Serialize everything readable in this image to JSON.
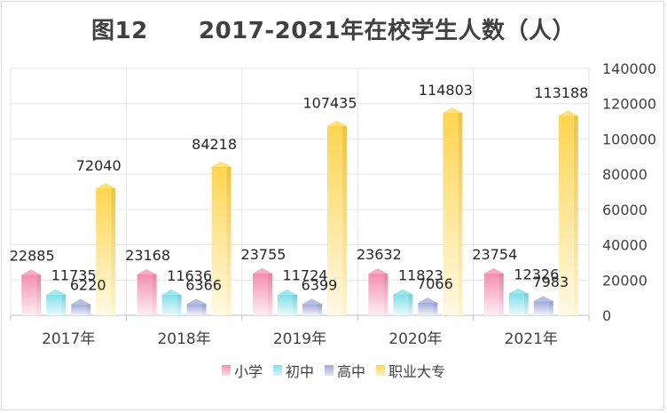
{
  "chart_data": {
    "type": "bar",
    "title": "图12      2017-2021年在校学生人数（人）",
    "categories": [
      "2017年",
      "2018年",
      "2019年",
      "2020年",
      "2021年"
    ],
    "series": [
      {
        "name": "小学",
        "values": [
          22885,
          23168,
          23755,
          23632,
          23754
        ],
        "color": "#f48fb1"
      },
      {
        "name": "初中",
        "values": [
          11735,
          11636,
          11724,
          11823,
          12326
        ],
        "color": "#80deea"
      },
      {
        "name": "高中",
        "values": [
          6220,
          6366,
          6399,
          7066,
          7983
        ],
        "color": "#9fa8da"
      },
      {
        "name": "职业大专",
        "values": [
          72040,
          84218,
          107435,
          114803,
          113188
        ],
        "color": "#ffd54f"
      }
    ],
    "yaxis_position": "right",
    "ylim": [
      0,
      140000
    ],
    "yticks": [
      "0",
      "20000",
      "40000",
      "60000",
      "80000",
      "100000",
      "120000",
      "140000"
    ],
    "grid": true,
    "legend_position": "bottom"
  }
}
